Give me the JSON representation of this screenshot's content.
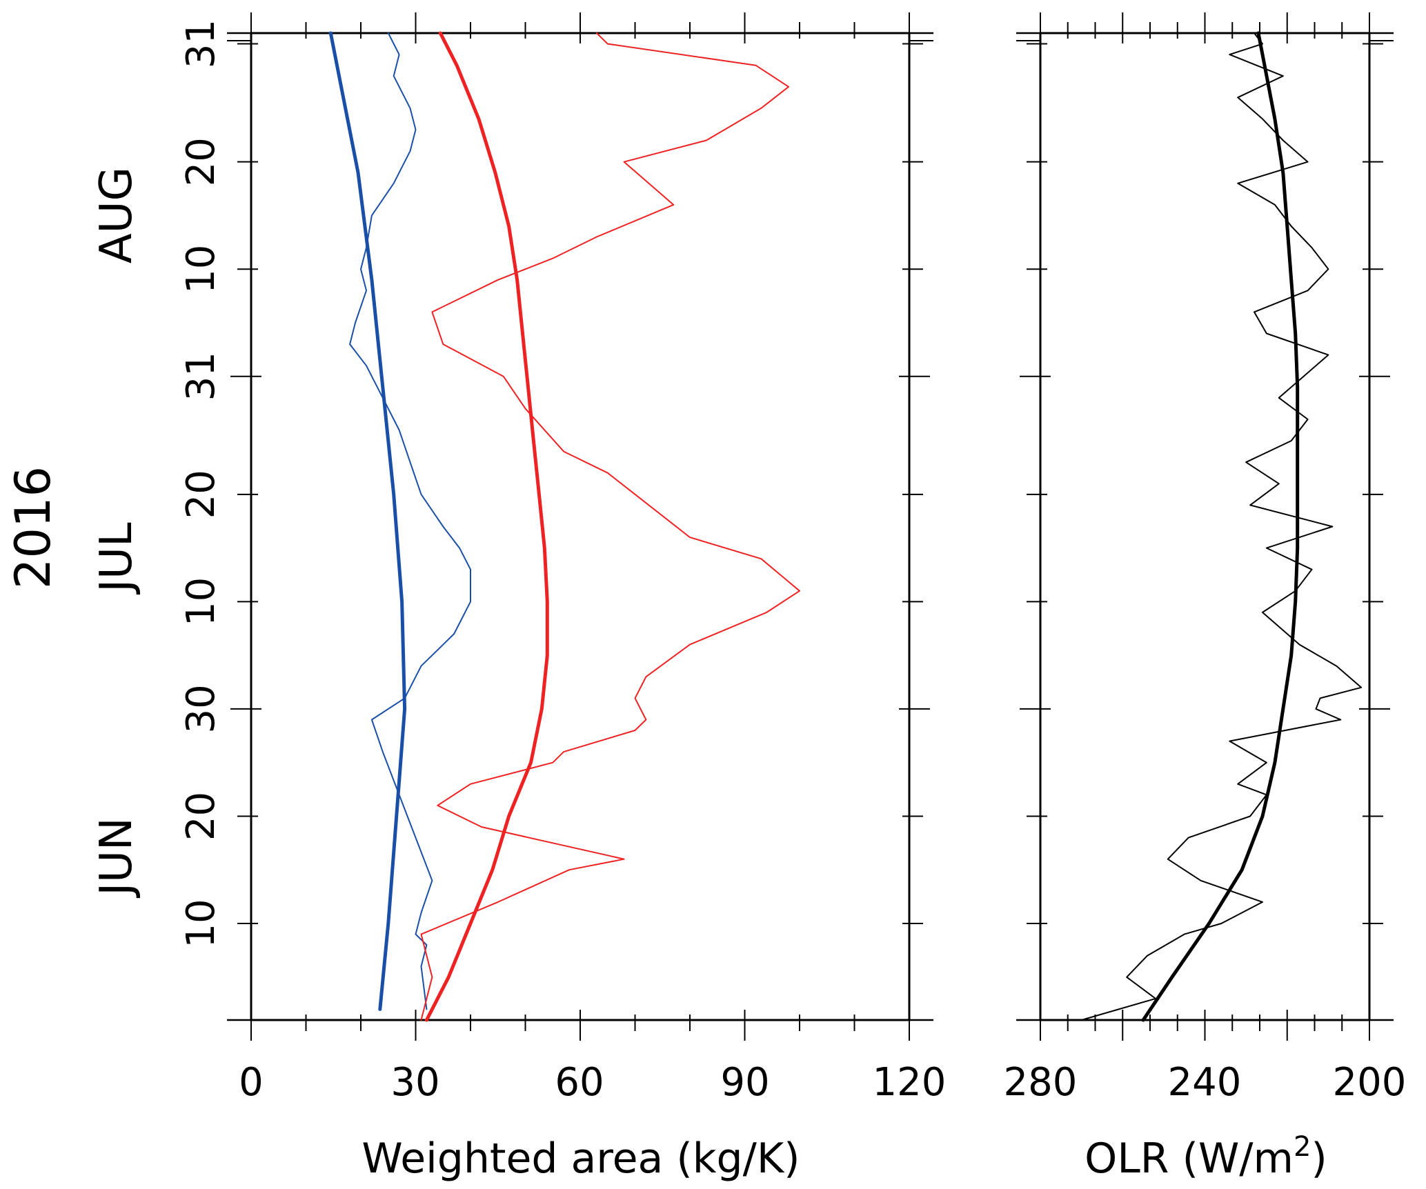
{
  "chart_data": [
    {
      "type": "line",
      "orientation": "vertical-time",
      "year_label": "2016",
      "month_labels": [
        "JUN",
        "JUL",
        "AUG"
      ],
      "day_tick_labels": [
        "10",
        "20",
        "30",
        "10",
        "20",
        "31",
        "10",
        "20",
        "31"
      ],
      "xlabel": "Weighted area (kg/K)",
      "xticks": [
        "0",
        "30",
        "60",
        "90",
        "120"
      ],
      "xlim": [
        0,
        120
      ],
      "ylim": [
        1,
        93
      ],
      "colors": {
        "blue": "#1a4fa8",
        "red": "#ee2222"
      },
      "series": [
        {
          "color": "blue",
          "style": "thick",
          "y": [
            2,
            10,
            20,
            30,
            40,
            50,
            60,
            70,
            80,
            93
          ],
          "x": [
            23.5,
            25,
            26.5,
            28,
            27.5,
            26,
            24,
            22,
            19.5,
            14.5
          ]
        },
        {
          "color": "blue",
          "style": "thin",
          "y": [
            2,
            6,
            8,
            9,
            11,
            14,
            18,
            22,
            26,
            29,
            31,
            34,
            37,
            40,
            43,
            45,
            47,
            50,
            53,
            56,
            59,
            62,
            64,
            66,
            69,
            71,
            73,
            76,
            79,
            82,
            84,
            86,
            89,
            91,
            93
          ],
          "x": [
            32,
            31,
            32,
            30,
            31,
            33,
            30,
            27,
            24,
            22,
            28,
            31,
            37,
            40,
            40,
            38,
            35,
            31,
            29,
            27,
            24,
            21,
            18,
            19,
            21,
            20,
            21,
            22,
            26,
            29,
            30,
            29,
            26,
            27,
            25
          ]
        },
        {
          "color": "red",
          "style": "thick",
          "y": [
            1,
            5,
            10,
            15,
            20,
            25,
            30,
            35,
            40,
            45,
            50,
            55,
            60,
            65,
            70,
            75,
            80,
            85,
            90,
            93
          ],
          "x": [
            32,
            36,
            40,
            44,
            47,
            51,
            53,
            54,
            54,
            53.5,
            52.5,
            51.5,
            50.5,
            49.5,
            48.5,
            47,
            44.5,
            41.5,
            37.5,
            34.5
          ]
        },
        {
          "color": "red",
          "style": "thin",
          "y": [
            1,
            5,
            9,
            12,
            15,
            16,
            19,
            21,
            23,
            25,
            26,
            28,
            29,
            31,
            33,
            36,
            39,
            41,
            44,
            46,
            50,
            52,
            54,
            58,
            61,
            64,
            67,
            70,
            72,
            74,
            77,
            81,
            83,
            86,
            88,
            90,
            92,
            93
          ],
          "x": [
            31,
            33,
            31,
            45,
            58,
            68,
            42,
            34,
            40,
            55,
            57,
            70,
            72,
            70,
            72,
            80,
            94,
            100,
            93,
            80,
            70,
            65,
            57,
            50,
            46,
            35,
            33,
            45,
            55,
            63,
            77,
            68,
            83,
            93,
            98,
            92,
            65,
            63
          ]
        }
      ]
    },
    {
      "type": "line",
      "orientation": "vertical-time",
      "xlabel_prefix": "OLR (W/m",
      "xlabel_sup": "2",
      "xlabel_suffix": ")",
      "xticks": [
        "280",
        "240",
        "200"
      ],
      "xlim": [
        280,
        200
      ],
      "ylim": [
        1,
        93
      ],
      "colors": {
        "black": "#000000"
      },
      "series": [
        {
          "color": "black",
          "style": "thick",
          "y": [
            1,
            5,
            10,
            15,
            20,
            25,
            30,
            35,
            40,
            45,
            50,
            55,
            60,
            65,
            70,
            75,
            80,
            85,
            90,
            93
          ],
          "x": [
            255,
            248,
            239,
            231,
            226,
            223,
            221,
            219,
            218,
            217.5,
            217.5,
            217.5,
            217.5,
            218,
            219,
            220,
            221,
            223,
            225.5,
            227
          ]
        },
        {
          "color": "black",
          "style": "thin",
          "y": [
            1,
            3,
            5,
            7,
            9,
            10,
            12,
            14,
            16,
            18,
            20,
            22,
            23,
            25,
            27,
            29,
            30,
            31,
            32,
            34,
            36,
            39,
            41,
            43,
            45,
            47,
            49,
            51,
            53,
            55,
            57,
            59,
            61,
            63,
            65,
            67,
            69,
            71,
            73,
            75,
            77,
            79,
            81,
            83,
            85,
            87,
            89,
            91,
            92,
            93
          ],
          "x": [
            270,
            252,
            259,
            254,
            245,
            236,
            226,
            241,
            249,
            244,
            229,
            225,
            232,
            225,
            234,
            207,
            213,
            212,
            202,
            208,
            217,
            226,
            218,
            214,
            225,
            209,
            229,
            222,
            230,
            219,
            215,
            222,
            216,
            210,
            225,
            228,
            215,
            210,
            214,
            219,
            223,
            232,
            215,
            221,
            226,
            232,
            221,
            234,
            226,
            228
          ]
        }
      ]
    }
  ]
}
